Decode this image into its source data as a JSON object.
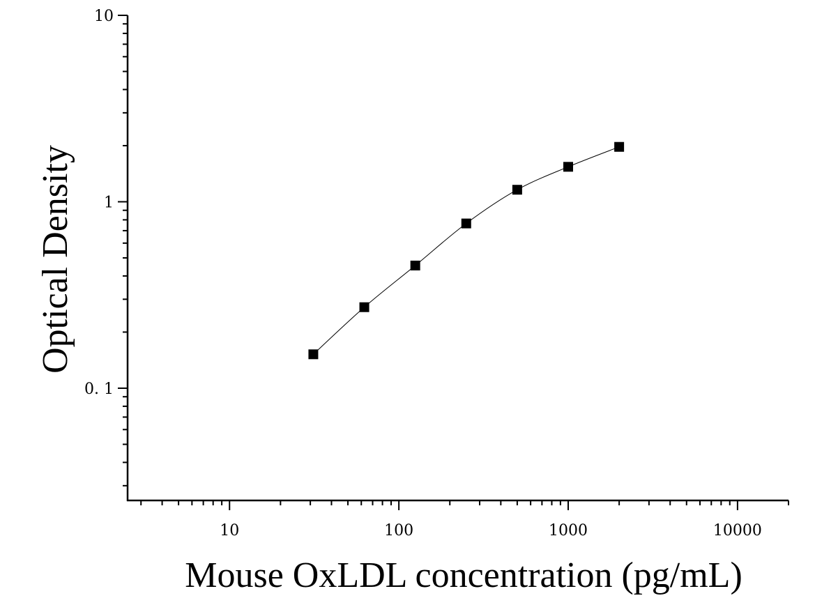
{
  "chart_data": {
    "type": "scatter",
    "title": "",
    "xlabel": "Mouse OxLDL concentration (pg/mL)",
    "ylabel": "Optical Density",
    "xscale": "log",
    "yscale": "log",
    "xlim": [
      2.5,
      20000
    ],
    "ylim": [
      0.025,
      10
    ],
    "xticks": [
      10,
      100,
      1000,
      10000
    ],
    "xtick_labels": [
      "10",
      "100",
      "1000",
      "10000"
    ],
    "yticks": [
      0.1,
      1,
      10
    ],
    "ytick_labels": [
      "0. 1",
      "1",
      "10"
    ],
    "grid": false,
    "legend": "none",
    "marker": "square",
    "marker_color": "#000000",
    "curve": "smooth fitted line through points",
    "series": [
      {
        "x": [
          31.25,
          62.5,
          125,
          250,
          500,
          1000,
          2000
        ],
        "y": [
          0.152,
          0.272,
          0.455,
          0.765,
          1.16,
          1.54,
          1.97
        ]
      }
    ]
  }
}
